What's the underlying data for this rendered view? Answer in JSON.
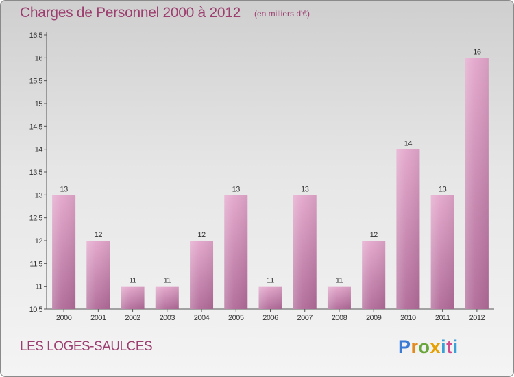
{
  "title": "Charges de Personnel 2000 à 2012",
  "subtitle": "(en milliers d'€)",
  "commune": "LES LOGES-SAULCES",
  "logo": {
    "letters": [
      "P",
      "r",
      "o",
      "x",
      "i",
      "t",
      "i"
    ]
  },
  "colors": {
    "bar_top": "#e3a6cb",
    "bar_bottom": "#b06a98",
    "text_accent": "#9c3f6f"
  },
  "chart_data": {
    "type": "bar",
    "categories": [
      "2000",
      "2001",
      "2002",
      "2003",
      "2004",
      "2005",
      "2006",
      "2007",
      "2008",
      "2009",
      "2010",
      "2011",
      "2012"
    ],
    "values": [
      13,
      12,
      11,
      11,
      12,
      13,
      11,
      13,
      11,
      12,
      14,
      13,
      16
    ],
    "data_labels": [
      "13",
      "12",
      "11",
      "11",
      "12",
      "13",
      "11",
      "13",
      "11",
      "12",
      "14",
      "13",
      "16"
    ],
    "ylim": [
      10.5,
      16.5
    ],
    "yticks": [
      10.5,
      11,
      11.5,
      12,
      12.5,
      13,
      13.5,
      14,
      14.5,
      15,
      15.5,
      16,
      16.5
    ],
    "ytick_labels": [
      "10.5",
      "11",
      "11.5",
      "12",
      "12.5",
      "13",
      "13.5",
      "14",
      "14.5",
      "15",
      "15.5",
      "16",
      "16.5"
    ],
    "grid": false,
    "legend": "none"
  }
}
